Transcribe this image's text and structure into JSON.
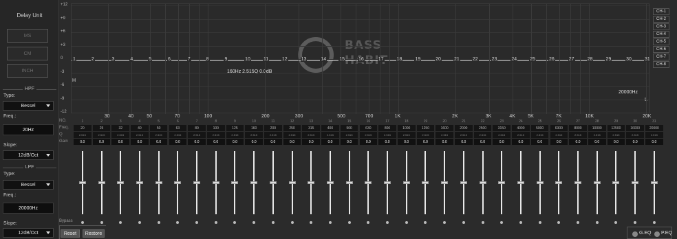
{
  "left_panel": {
    "delay_title": "Delay Unit",
    "units": [
      "MS",
      "CM",
      "INCH"
    ],
    "hpf": {
      "title": "HPF",
      "type_label": "Type:",
      "type_value": "Bessel",
      "freq_label": "Freq.:",
      "freq_value": "20Hz",
      "slope_label": "Slope:",
      "slope_value": "12dB/Oct"
    },
    "lpf": {
      "title": "LPF",
      "type_label": "Type:",
      "type_value": "Bessel",
      "freq_label": "Freq.:",
      "freq_value": "20000Hz",
      "slope_label": "Slope:",
      "slope_value": "12dB/Oct"
    }
  },
  "graph": {
    "db_labels": [
      "+12",
      "+9",
      "+6",
      "+3",
      "0",
      "-3",
      "-6",
      "-9",
      "-12"
    ],
    "band_numbers": [
      "1",
      "2",
      "3",
      "4",
      "5",
      "6",
      "7",
      "8",
      "9",
      "10",
      "11",
      "12",
      "13",
      "14",
      "15",
      "16",
      "17",
      "18",
      "19",
      "20",
      "21",
      "22",
      "23",
      "24",
      "25",
      "26",
      "27",
      "28",
      "29",
      "30",
      "31"
    ],
    "freq_ticks": [
      "30",
      "40",
      "50",
      "70",
      "100",
      "200",
      "300",
      "500",
      "700",
      "1K",
      "2K",
      "3K",
      "4K",
      "5K",
      "7K",
      "10K",
      "20K"
    ],
    "info": "160Hz  2.515Q  0.0dB",
    "hpf_marker": "H",
    "lpf_marker": "L",
    "lpf_freq": "20000Hz",
    "logo_line1": "BASS",
    "logo_line2": "HABIT"
  },
  "channels": [
    "CH-1",
    "CH-2",
    "CH-3",
    "CH-4",
    "CH-5",
    "CH-6",
    "CH-7",
    "CH-8"
  ],
  "table": {
    "row_labels": [
      "NO.",
      "Freq.",
      "Q",
      "Gain"
    ],
    "bands": [
      {
        "no": "1",
        "freq": "20",
        "q": "2.515",
        "gain": "0.0"
      },
      {
        "no": "2",
        "freq": "25",
        "q": "2.515",
        "gain": "0.0"
      },
      {
        "no": "3",
        "freq": "32",
        "q": "2.515",
        "gain": "0.0"
      },
      {
        "no": "4",
        "freq": "40",
        "q": "2.515",
        "gain": "0.0"
      },
      {
        "no": "5",
        "freq": "50",
        "q": "2.515",
        "gain": "0.0"
      },
      {
        "no": "6",
        "freq": "63",
        "q": "2.515",
        "gain": "0.0"
      },
      {
        "no": "7",
        "freq": "80",
        "q": "2.515",
        "gain": "0.0"
      },
      {
        "no": "8",
        "freq": "100",
        "q": "2.515",
        "gain": "0.0"
      },
      {
        "no": "9",
        "freq": "125",
        "q": "2.515",
        "gain": "0.0"
      },
      {
        "no": "10",
        "freq": "160",
        "q": "2.515",
        "gain": "0.0"
      },
      {
        "no": "11",
        "freq": "200",
        "q": "2.515",
        "gain": "0.0"
      },
      {
        "no": "12",
        "freq": "250",
        "q": "2.515",
        "gain": "0.0"
      },
      {
        "no": "13",
        "freq": "315",
        "q": "2.515",
        "gain": "0.0"
      },
      {
        "no": "14",
        "freq": "400",
        "q": "2.515",
        "gain": "0.0"
      },
      {
        "no": "15",
        "freq": "500",
        "q": "2.515",
        "gain": "0.0"
      },
      {
        "no": "16",
        "freq": "630",
        "q": "2.515",
        "gain": "0.0"
      },
      {
        "no": "17",
        "freq": "800",
        "q": "2.515",
        "gain": "0.0"
      },
      {
        "no": "18",
        "freq": "1000",
        "q": "2.515",
        "gain": "0.0"
      },
      {
        "no": "19",
        "freq": "1250",
        "q": "2.515",
        "gain": "0.0"
      },
      {
        "no": "20",
        "freq": "1600",
        "q": "2.515",
        "gain": "0.0"
      },
      {
        "no": "21",
        "freq": "2000",
        "q": "2.515",
        "gain": "0.0"
      },
      {
        "no": "22",
        "freq": "2500",
        "q": "2.515",
        "gain": "0.0"
      },
      {
        "no": "23",
        "freq": "3150",
        "q": "2.515",
        "gain": "0.0"
      },
      {
        "no": "24",
        "freq": "4000",
        "q": "2.515",
        "gain": "0.0"
      },
      {
        "no": "25",
        "freq": "5000",
        "q": "2.515",
        "gain": "0.0"
      },
      {
        "no": "26",
        "freq": "6300",
        "q": "2.515",
        "gain": "0.0"
      },
      {
        "no": "27",
        "freq": "8000",
        "q": "2.515",
        "gain": "0.0"
      },
      {
        "no": "28",
        "freq": "10000",
        "q": "2.515",
        "gain": "0.0"
      },
      {
        "no": "29",
        "freq": "12500",
        "q": "2.515",
        "gain": "0.0"
      },
      {
        "no": "30",
        "freq": "16000",
        "q": "2.515",
        "gain": "0.0"
      },
      {
        "no": "31",
        "freq": "20000",
        "q": "2.515",
        "gain": "0.0"
      }
    ]
  },
  "bottom": {
    "bypass_label": "Bypass",
    "reset_label": "Reset",
    "restore_label": "Restore",
    "geq_label": "G.EQ",
    "peq_label": "P.EQ"
  }
}
